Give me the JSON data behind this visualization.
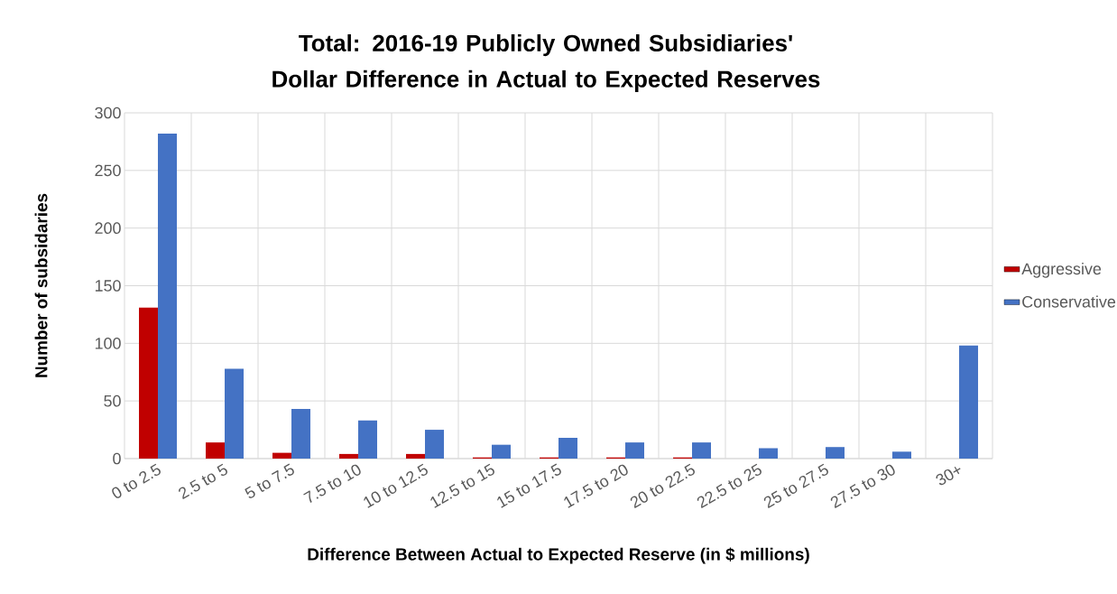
{
  "chart_data": {
    "type": "bar",
    "title": "Total: 2016-19 Publicly Owned Subsidiaries' Dollar Difference in Actual to Expected Reserves",
    "xlabel": "Difference Between Actual to Expected Reserve (in $ millions)",
    "ylabel": "Number of subsidaries",
    "categories": [
      "0 to 2.5",
      "2.5 to 5",
      "5 to 7.5",
      "7.5 to 10",
      "10 to 12.5",
      "12.5 to 15",
      "15 to 17.5",
      "17.5 to 20",
      "20 to 22.5",
      "22.5 to 25",
      "25 to 27.5",
      "27.5 to 30",
      "30+"
    ],
    "series": [
      {
        "name": "Aggressive",
        "color": "#c00000",
        "values": [
          131,
          14,
          5,
          4,
          4,
          1,
          1,
          1,
          1,
          0,
          0,
          0,
          0
        ]
      },
      {
        "name": "Conservative",
        "color": "#4472c4",
        "values": [
          282,
          78,
          43,
          33,
          25,
          12,
          18,
          14,
          14,
          9,
          10,
          6,
          98
        ]
      }
    ],
    "ylim": [
      0,
      300
    ],
    "yticks": [
      0,
      50,
      100,
      150,
      200,
      250,
      300
    ],
    "grid": true,
    "legend": "right"
  }
}
